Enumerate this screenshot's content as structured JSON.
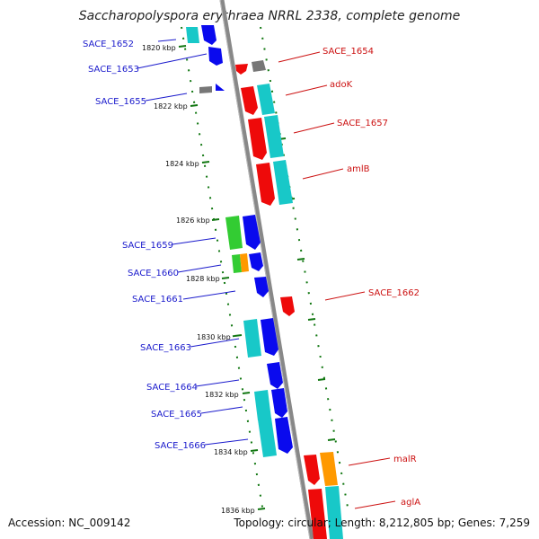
{
  "title": "Saccharopolyspora erythraea NRRL 2338, complete genome",
  "accession": "Accession: NC_009142",
  "summary": "Topology: circular; Length: 8,212,805 bp; Genes: 7,259",
  "colors": {
    "backbone": "#888888",
    "tick": "#117711",
    "blue": "#0a0aee",
    "red": "#ee0a0a",
    "cyan": "#18c8c8",
    "green": "#33cc33",
    "orange": "#ff9900",
    "grey": "#777777",
    "blue_label": "#1a1acc",
    "red_label": "#cc1111"
  },
  "kbp_labels": [
    "1820 kbp",
    "1822 kbp",
    "1824 kbp",
    "1826 kbp",
    "1828 kbp",
    "1830 kbp",
    "1832 kbp",
    "1834 kbp",
    "1836 kbp"
  ],
  "left_genes": [
    "SACE_1652",
    "SACE_1653",
    "SACE_1655",
    "SACE_1659",
    "SACE_1660",
    "SACE_1661",
    "SACE_1663",
    "SACE_1664",
    "SACE_1665",
    "SACE_1666"
  ],
  "right_genes": [
    "SACE_1654",
    "adoK",
    "SACE_1657",
    "amlB",
    "SACE_1662",
    "malR",
    "aglA"
  ]
}
